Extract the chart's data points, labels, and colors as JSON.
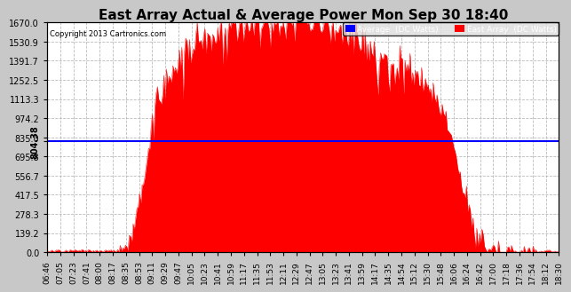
{
  "title": "East Array Actual & Average Power Mon Sep 30 18:40",
  "copyright": "Copyright 2013 Cartronics.com",
  "average_value": 804.38,
  "y_max": 1670.0,
  "y_ticks": [
    0.0,
    139.2,
    278.3,
    417.5,
    556.7,
    695.8,
    835.0,
    974.2,
    1113.3,
    1252.5,
    1391.7,
    1530.9,
    1670.0
  ],
  "y_tick_labels": [
    "0.0",
    "139.2",
    "278.3",
    "417.5",
    "556.7",
    "695.8",
    "835.0",
    "974.2",
    "1113.3",
    "1252.5",
    "1391.7",
    "1530.9",
    "1670.0"
  ],
  "left_tick_label": "804.38",
  "x_labels": [
    "06:46",
    "07:05",
    "07:23",
    "07:41",
    "08:00",
    "08:17",
    "08:35",
    "08:53",
    "09:11",
    "09:29",
    "09:47",
    "10:05",
    "10:23",
    "10:41",
    "10:59",
    "11:17",
    "11:35",
    "11:53",
    "12:11",
    "12:29",
    "12:47",
    "13:05",
    "13:23",
    "13:41",
    "13:59",
    "14:17",
    "14:35",
    "14:54",
    "15:12",
    "15:30",
    "15:48",
    "16:06",
    "16:24",
    "16:42",
    "17:00",
    "17:18",
    "17:36",
    "17:54",
    "18:12",
    "18:30"
  ],
  "area_color": "#FF0000",
  "average_line_color": "#0000FF",
  "background_color": "#C8C8C8",
  "plot_bg_color": "#FFFFFF",
  "grid_color": "#AAAAAA",
  "title_fontsize": 11,
  "copyright_fontsize": 6,
  "tick_fontsize": 7,
  "legend_avg_color": "#0000FF",
  "legend_east_color": "#FF0000"
}
